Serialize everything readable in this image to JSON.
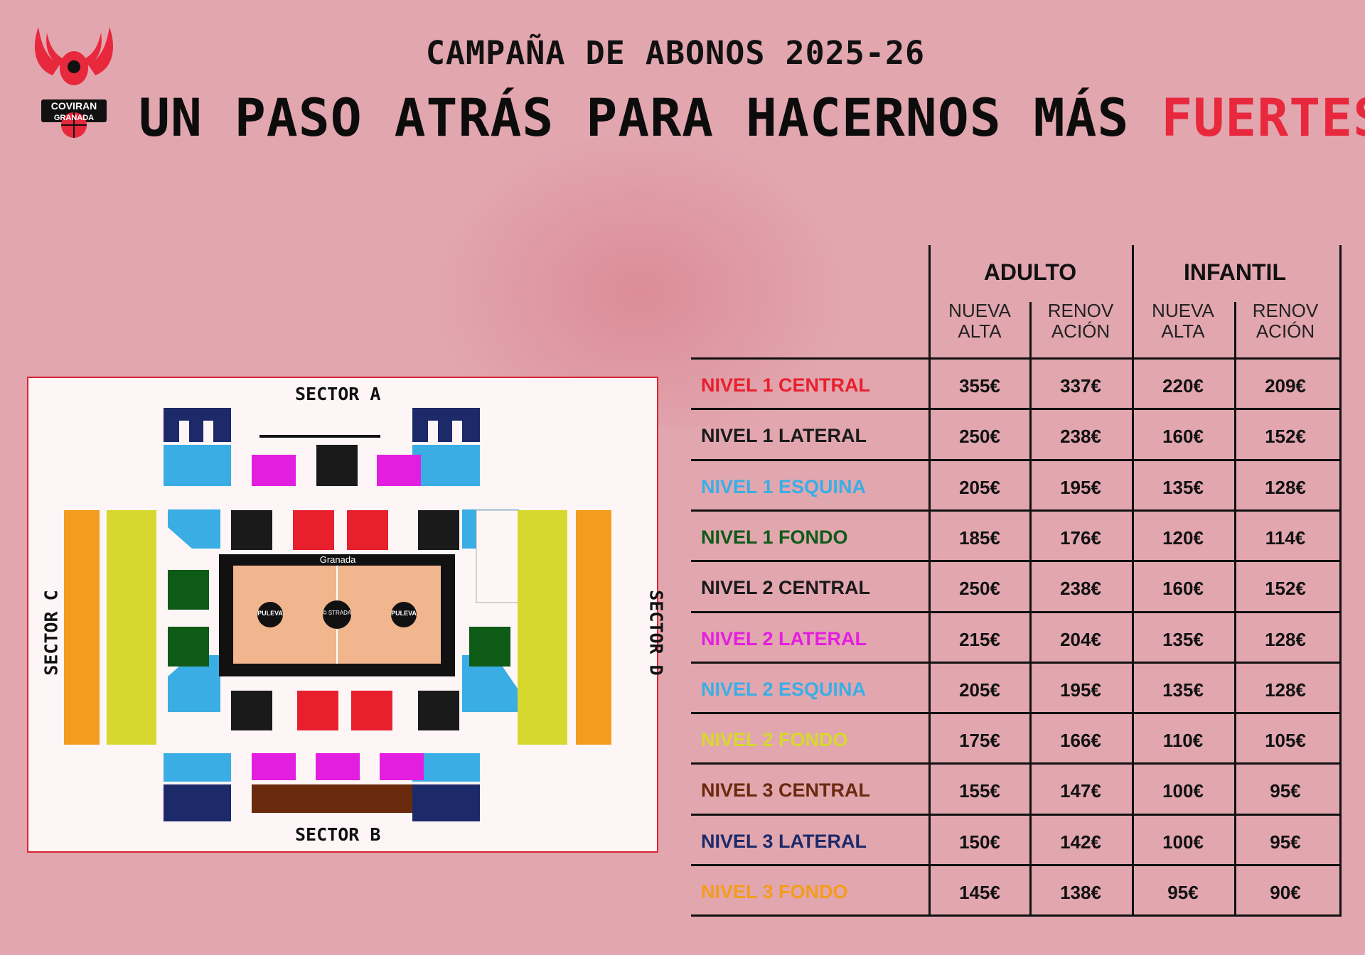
{
  "header": {
    "campaign": "CAMPAÑA DE ABONOS 2025-26",
    "slogan_main": "UN PASO ATRÁS PARA HACERNOS MÁS ",
    "slogan_accent": "FUERTES"
  },
  "logo": {
    "name": "COVIRAN",
    "sub": "GRANADA"
  },
  "map": {
    "sector_a": "SECTOR A",
    "sector_b": "SECTOR B",
    "sector_c": "SECTOR C",
    "sector_d": "SECTOR D",
    "court_top": "Granada",
    "court_center": "© STRADA",
    "court_left": "PULEVA",
    "court_right": "PULEVA"
  },
  "table": {
    "groups": [
      "ADULTO",
      "INFANTIL"
    ],
    "subcols": [
      "NUEVA\nALTA",
      "RENOV\nACIÓN",
      "NUEVA\nALTA",
      "RENOV\nACIÓN"
    ],
    "rows": [
      {
        "label": "NIVEL 1 CENTRAL",
        "color": "#e8202e",
        "prices": [
          "355€",
          "337€",
          "220€",
          "209€"
        ]
      },
      {
        "label": "NIVEL 1 LATERAL",
        "color": "#1a1a1a",
        "prices": [
          "250€",
          "238€",
          "160€",
          "152€"
        ]
      },
      {
        "label": "NIVEL 1 ESQUINA",
        "color": "#3aaee4",
        "prices": [
          "205€",
          "195€",
          "135€",
          "128€"
        ]
      },
      {
        "label": "NIVEL 1 FONDO",
        "color": "#0e5a17",
        "prices": [
          "185€",
          "176€",
          "120€",
          "114€"
        ]
      },
      {
        "label": "NIVEL 2 CENTRAL",
        "color": "#1a1a1a",
        "prices": [
          "250€",
          "238€",
          "160€",
          "152€"
        ]
      },
      {
        "label": "NIVEL 2 LATERAL",
        "color": "#e41ee0",
        "prices": [
          "215€",
          "204€",
          "135€",
          "128€"
        ]
      },
      {
        "label": "NIVEL 2 ESQUINA",
        "color": "#3aaee4",
        "prices": [
          "205€",
          "195€",
          "135€",
          "128€"
        ]
      },
      {
        "label": "NIVEL 2 FONDO",
        "color": "#d6d82e",
        "prices": [
          "175€",
          "166€",
          "110€",
          "105€"
        ]
      },
      {
        "label": "NIVEL 3 CENTRAL",
        "color": "#6a2a0e",
        "prices": [
          "155€",
          "147€",
          "100€",
          "95€"
        ]
      },
      {
        "label": "NIVEL 3 LATERAL",
        "color": "#1c2a6a",
        "prices": [
          "150€",
          "142€",
          "100€",
          "95€"
        ]
      },
      {
        "label": "NIVEL 3 FONDO",
        "color": "#f39c1e",
        "prices": [
          "145€",
          "138€",
          "95€",
          "90€"
        ]
      }
    ]
  }
}
